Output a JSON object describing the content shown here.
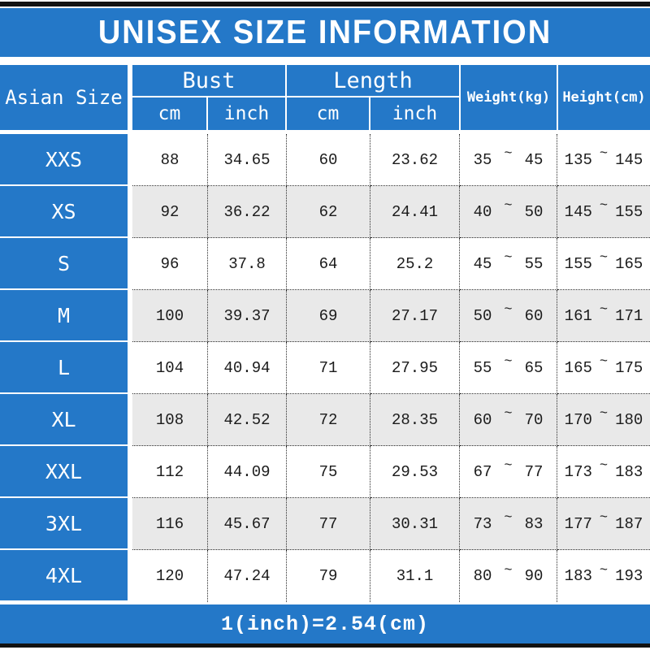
{
  "title": "UNISEX SIZE INFORMATION",
  "tilde": "~",
  "header": {
    "asian_size": "Asian Size",
    "bust": "Bust",
    "length": "Length",
    "bust_cm": "cm",
    "bust_inch": "inch",
    "length_cm": "cm",
    "length_inch": "inch",
    "weight": "Weight(kg)",
    "height": "Height(cm)"
  },
  "rows": [
    {
      "size": "XXS",
      "bust_cm": "88",
      "bust_inch": "34.65",
      "length_cm": "60",
      "length_inch": "23.62",
      "weight_min": "35",
      "weight_max": "45",
      "height_min": "135",
      "height_max": "145"
    },
    {
      "size": "XS",
      "bust_cm": "92",
      "bust_inch": "36.22",
      "length_cm": "62",
      "length_inch": "24.41",
      "weight_min": "40",
      "weight_max": "50",
      "height_min": "145",
      "height_max": "155"
    },
    {
      "size": "S",
      "bust_cm": "96",
      "bust_inch": "37.8",
      "length_cm": "64",
      "length_inch": "25.2",
      "weight_min": "45",
      "weight_max": "55",
      "height_min": "155",
      "height_max": "165"
    },
    {
      "size": "M",
      "bust_cm": "100",
      "bust_inch": "39.37",
      "length_cm": "69",
      "length_inch": "27.17",
      "weight_min": "50",
      "weight_max": "60",
      "height_min": "161",
      "height_max": "171"
    },
    {
      "size": "L",
      "bust_cm": "104",
      "bust_inch": "40.94",
      "length_cm": "71",
      "length_inch": "27.95",
      "weight_min": "55",
      "weight_max": "65",
      "height_min": "165",
      "height_max": "175"
    },
    {
      "size": "XL",
      "bust_cm": "108",
      "bust_inch": "42.52",
      "length_cm": "72",
      "length_inch": "28.35",
      "weight_min": "60",
      "weight_max": "70",
      "height_min": "170",
      "height_max": "180"
    },
    {
      "size": "XXL",
      "bust_cm": "112",
      "bust_inch": "44.09",
      "length_cm": "75",
      "length_inch": "29.53",
      "weight_min": "67",
      "weight_max": "77",
      "height_min": "173",
      "height_max": "183"
    },
    {
      "size": "3XL",
      "bust_cm": "116",
      "bust_inch": "45.67",
      "length_cm": "77",
      "length_inch": "30.31",
      "weight_min": "73",
      "weight_max": "83",
      "height_min": "177",
      "height_max": "187"
    },
    {
      "size": "4XL",
      "bust_cm": "120",
      "bust_inch": "47.24",
      "length_cm": "79",
      "length_inch": "31.1",
      "weight_min": "80",
      "weight_max": "90",
      "height_min": "183",
      "height_max": "193"
    }
  ],
  "footer": "1(inch)=2.54(cm)",
  "colors": {
    "accent_blue": "#2478C8",
    "bar_black": "#121212",
    "alt_row_gray": "#E9E9E9"
  },
  "chart_data": {
    "type": "table",
    "title": "UNISEX SIZE INFORMATION",
    "columns": [
      "Asian Size",
      "Bust cm",
      "Bust inch",
      "Length cm",
      "Length inch",
      "Weight(kg)",
      "Height(cm)"
    ],
    "rows": [
      [
        "XXS",
        88,
        34.65,
        60,
        23.62,
        "35~45",
        "135~145"
      ],
      [
        "XS",
        92,
        36.22,
        62,
        24.41,
        "40~50",
        "145~155"
      ],
      [
        "S",
        96,
        37.8,
        64,
        25.2,
        "45~55",
        "155~165"
      ],
      [
        "M",
        100,
        39.37,
        69,
        27.17,
        "50~60",
        "161~171"
      ],
      [
        "L",
        104,
        40.94,
        71,
        27.95,
        "55~65",
        "165~175"
      ],
      [
        "XL",
        108,
        42.52,
        72,
        28.35,
        "60~70",
        "170~180"
      ],
      [
        "XXL",
        112,
        44.09,
        75,
        29.53,
        "67~77",
        "173~183"
      ],
      [
        "3XL",
        116,
        45.67,
        77,
        30.31,
        "73~83",
        "177~187"
      ],
      [
        "4XL",
        120,
        47.24,
        79,
        31.1,
        "80~90",
        "183~193"
      ]
    ],
    "footnote": "1(inch)=2.54(cm)"
  }
}
